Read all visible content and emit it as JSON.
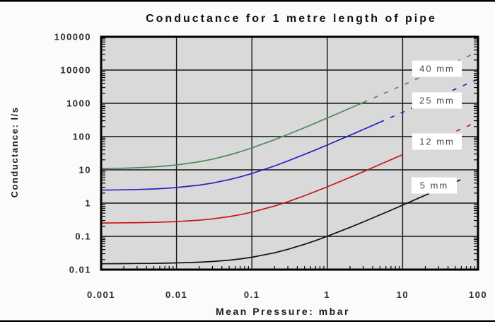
{
  "title": "Conductance for 1 metre length of pipe",
  "axes": {
    "x": {
      "label": "Mean Pressure: mbar",
      "scale": "log",
      "tick_labels": [
        "0.001",
        "0.01",
        "0.1",
        "1",
        "10",
        "100"
      ],
      "tick_values": [
        0.001,
        0.01,
        0.1,
        1,
        10,
        100
      ]
    },
    "y": {
      "label": "Conductance: l/s",
      "scale": "log",
      "tick_labels": [
        "100000",
        "10000",
        "1000",
        "100",
        "10",
        "1",
        "0.1",
        "0.01"
      ],
      "tick_values": [
        100000,
        10000,
        1000,
        100,
        10,
        1,
        0.1,
        0.01
      ]
    }
  },
  "colors": {
    "plot_background": "#d9d9d9",
    "page_background": "#fbfbf9",
    "grid": "#141414",
    "frame": "#000000",
    "border_bars": "#000000"
  },
  "chart_data": {
    "type": "line",
    "title": "Conductance for 1 metre length of pipe",
    "xlabel": "Mean Pressure: mbar",
    "ylabel": "Conductance: l/s",
    "xscale": "log",
    "yscale": "log",
    "xlim": [
      0.001,
      100
    ],
    "ylim": [
      0.01,
      100000
    ],
    "grid": true,
    "legend": "inline-labels-right",
    "series": [
      {
        "name": "40 mm",
        "color": "#4f8a5b",
        "dash_from": 3,
        "points": [
          [
            0.001,
            10.9
          ],
          [
            0.002,
            11.2
          ],
          [
            0.003,
            11.6
          ],
          [
            0.005,
            12.3
          ],
          [
            0.007,
            13.0
          ],
          [
            0.01,
            14.0
          ],
          [
            0.02,
            17.5
          ],
          [
            0.03,
            21.0
          ],
          [
            0.05,
            28.0
          ],
          [
            0.07,
            35.0
          ],
          [
            0.1,
            45.5
          ],
          [
            0.2,
            80.5
          ],
          [
            0.3,
            116
          ],
          [
            0.5,
            186
          ],
          [
            0.7,
            256
          ],
          [
            1,
            361
          ],
          [
            2,
            711
          ],
          [
            3,
            1061
          ],
          [
            5,
            1761
          ],
          [
            7,
            2461
          ],
          [
            10,
            3511
          ],
          [
            20,
            7011
          ],
          [
            30,
            10511
          ],
          [
            50,
            17511
          ],
          [
            70,
            24511
          ],
          [
            100,
            35011
          ]
        ]
      },
      {
        "name": "25 mm",
        "color": "#2323c0",
        "dash_from": 5,
        "points": [
          [
            0.001,
            2.45
          ],
          [
            0.002,
            2.51
          ],
          [
            0.003,
            2.56
          ],
          [
            0.005,
            2.67
          ],
          [
            0.007,
            2.77
          ],
          [
            0.01,
            2.94
          ],
          [
            0.02,
            3.47
          ],
          [
            0.03,
            4.0
          ],
          [
            0.05,
            5.08
          ],
          [
            0.07,
            6.15
          ],
          [
            0.1,
            7.75
          ],
          [
            0.2,
            13.1
          ],
          [
            0.3,
            18.5
          ],
          [
            0.5,
            29.2
          ],
          [
            0.7,
            39.9
          ],
          [
            1,
            55.9
          ],
          [
            2,
            109
          ],
          [
            3,
            163
          ],
          [
            5,
            270
          ],
          [
            7,
            377
          ],
          [
            10,
            537
          ],
          [
            20,
            1072
          ],
          [
            30,
            1607
          ],
          [
            50,
            2678
          ],
          [
            70,
            3747
          ],
          [
            100,
            5352
          ]
        ]
      },
      {
        "name": "12 mm",
        "color": "#cc1414",
        "dash_from": 15,
        "points": [
          [
            0.001,
            0.253
          ],
          [
            0.002,
            0.256
          ],
          [
            0.003,
            0.259
          ],
          [
            0.005,
            0.264
          ],
          [
            0.007,
            0.27
          ],
          [
            0.01,
            0.278
          ],
          [
            0.02,
            0.307
          ],
          [
            0.03,
            0.335
          ],
          [
            0.05,
            0.392
          ],
          [
            0.07,
            0.449
          ],
          [
            0.1,
            0.534
          ],
          [
            0.2,
            0.818
          ],
          [
            0.3,
            1.1
          ],
          [
            0.5,
            1.67
          ],
          [
            0.7,
            2.24
          ],
          [
            1,
            3.09
          ],
          [
            2,
            5.93
          ],
          [
            3,
            8.77
          ],
          [
            5,
            14.5
          ],
          [
            7,
            20.1
          ],
          [
            10,
            28.7
          ],
          [
            20,
            57.1
          ],
          [
            30,
            85.5
          ],
          [
            50,
            142
          ],
          [
            70,
            199
          ],
          [
            100,
            284
          ]
        ]
      },
      {
        "name": "5 mm",
        "color": "#111111",
        "dash_from": 20,
        "points": [
          [
            0.001,
            0.015
          ],
          [
            0.002,
            0.0152
          ],
          [
            0.003,
            0.0153
          ],
          [
            0.005,
            0.0154
          ],
          [
            0.007,
            0.0156
          ],
          [
            0.01,
            0.0159
          ],
          [
            0.02,
            0.0167
          ],
          [
            0.03,
            0.0176
          ],
          [
            0.05,
            0.0193
          ],
          [
            0.07,
            0.021
          ],
          [
            0.1,
            0.0236
          ],
          [
            0.2,
            0.0321
          ],
          [
            0.3,
            0.0407
          ],
          [
            0.5,
            0.0578
          ],
          [
            0.7,
            0.0749
          ],
          [
            1,
            0.101
          ],
          [
            2,
            0.186
          ],
          [
            3,
            0.272
          ],
          [
            5,
            0.443
          ],
          [
            7,
            0.614
          ],
          [
            10,
            0.871
          ],
          [
            20,
            1.73
          ],
          [
            30,
            2.58
          ],
          [
            50,
            4.29
          ],
          [
            70,
            6.01
          ]
        ]
      }
    ],
    "series_labels": [
      {
        "text": "40 mm",
        "cx": 618,
        "cy": 97,
        "w": 70,
        "h": 23
      },
      {
        "text": "25 mm",
        "cx": 618,
        "cy": 142,
        "w": 70,
        "h": 23
      },
      {
        "text": "12 mm",
        "cx": 618,
        "cy": 200,
        "w": 70,
        "h": 23
      },
      {
        "text": "5 mm",
        "cx": 614,
        "cy": 262,
        "w": 64,
        "h": 23
      }
    ]
  }
}
